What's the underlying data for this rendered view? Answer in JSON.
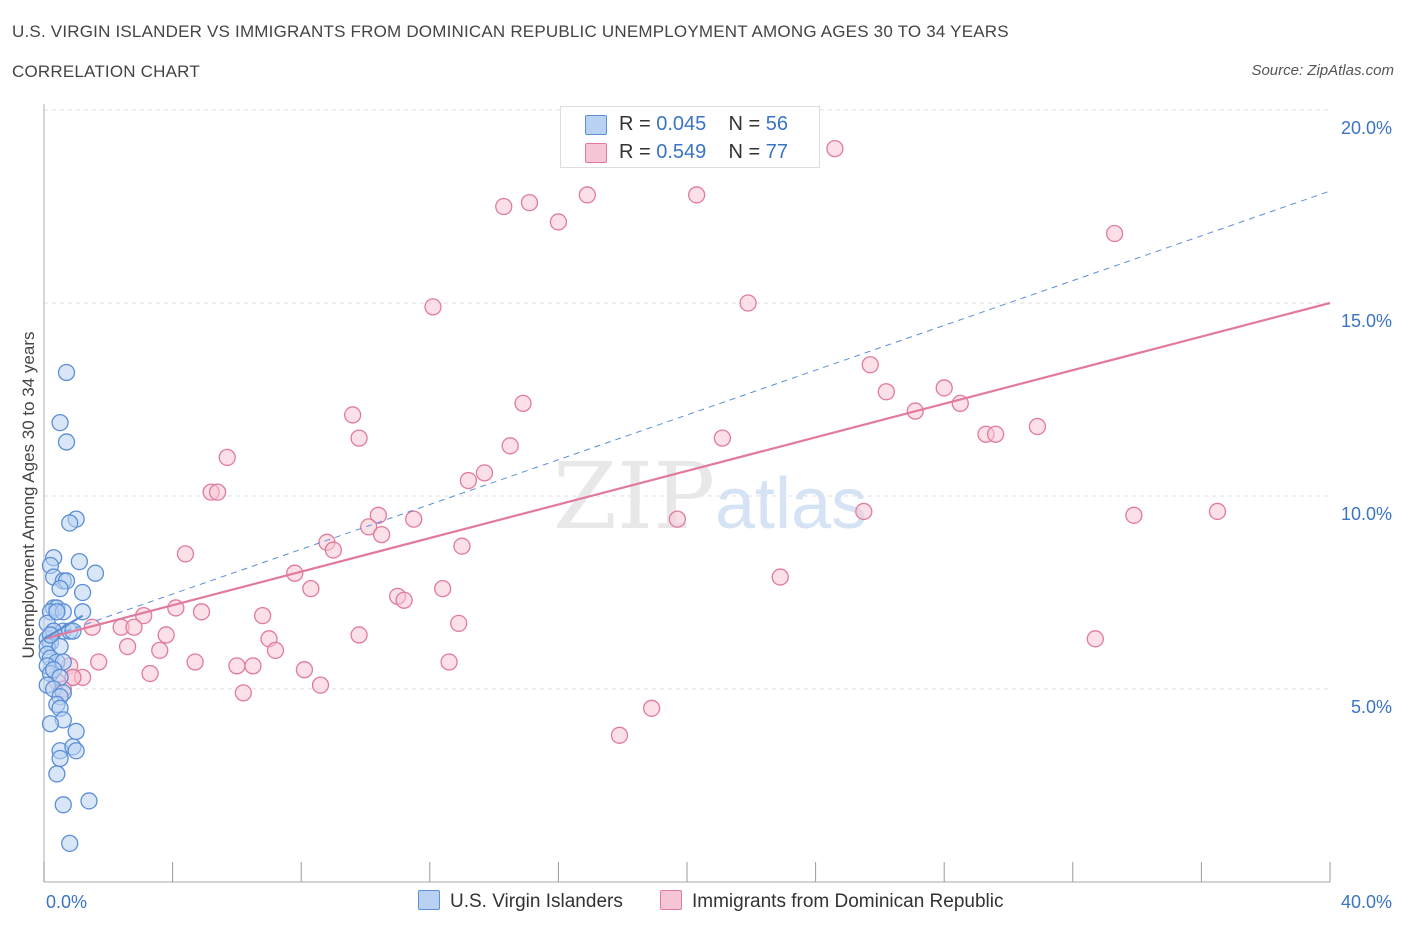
{
  "header": {
    "title": "U.S. VIRGIN ISLANDER VS IMMIGRANTS FROM DOMINICAN REPUBLIC UNEMPLOYMENT AMONG AGES 30 TO 34 YEARS",
    "subtitle": "CORRELATION CHART",
    "source": "Source: ZipAtlas.com"
  },
  "colors": {
    "blue": "#5b8fd6",
    "blue_fill": "#b9d2f3",
    "pink": "#e27a9c",
    "pink_fill": "#f7c6d6",
    "blue_text": "#3a74c4",
    "grid": "#dddddd"
  },
  "legend": {
    "rows": [
      {
        "r_label": "R =",
        "r_value": "0.045",
        "n_label": "N =",
        "n_value": "56"
      },
      {
        "r_label": "R =",
        "r_value": "0.549",
        "n_label": "N =",
        "n_value": "77"
      }
    ]
  },
  "watermark": {
    "zip": "ZIP",
    "atlas": "atlas"
  },
  "chart_data": {
    "type": "scatter",
    "title": "U.S. VIRGIN ISLANDER VS IMMIGRANTS FROM DOMINICAN REPUBLIC UNEMPLOYMENT AMONG AGES 30 TO 34 YEARS",
    "subtitle": "CORRELATION CHART",
    "ylabel": "Unemployment Among Ages 30 to 34 years",
    "xlabel": "",
    "xlim": [
      0,
      40
    ],
    "ylim": [
      0,
      20
    ],
    "x_tick_labels": [
      "0.0%",
      "40.0%"
    ],
    "y_tick_labels": [
      "5.0%",
      "10.0%",
      "15.0%",
      "20.0%"
    ],
    "y_ticks": [
      5,
      10,
      15,
      20
    ],
    "grid": true,
    "legend_position": "top-center",
    "series": [
      {
        "name": "U.S. Virgin Islanders",
        "color": "#5b8fd6",
        "r": 0.045,
        "n": 56,
        "trend": {
          "x": [
            0,
            1.2
          ],
          "y": [
            6.3,
            6.9
          ]
        },
        "points": [
          [
            0.7,
            13.2
          ],
          [
            0.5,
            11.9
          ],
          [
            0.7,
            11.4
          ],
          [
            1.0,
            9.4
          ],
          [
            0.8,
            9.3
          ],
          [
            0.3,
            8.4
          ],
          [
            1.1,
            8.3
          ],
          [
            0.2,
            8.2
          ],
          [
            1.6,
            8.0
          ],
          [
            0.3,
            7.9
          ],
          [
            0.6,
            7.8
          ],
          [
            0.7,
            7.8
          ],
          [
            0.5,
            7.6
          ],
          [
            1.2,
            7.5
          ],
          [
            0.3,
            7.1
          ],
          [
            0.4,
            7.1
          ],
          [
            0.2,
            7.0
          ],
          [
            0.6,
            7.0
          ],
          [
            1.2,
            7.0
          ],
          [
            0.1,
            6.7
          ],
          [
            0.3,
            6.5
          ],
          [
            0.6,
            6.5
          ],
          [
            0.8,
            6.5
          ],
          [
            0.9,
            6.5
          ],
          [
            0.1,
            6.3
          ],
          [
            0.2,
            6.2
          ],
          [
            0.1,
            6.1
          ],
          [
            0.5,
            6.1
          ],
          [
            0.1,
            5.9
          ],
          [
            0.2,
            5.8
          ],
          [
            0.4,
            5.7
          ],
          [
            0.6,
            5.7
          ],
          [
            0.1,
            5.6
          ],
          [
            0.2,
            5.4
          ],
          [
            0.3,
            5.5
          ],
          [
            0.5,
            5.3
          ],
          [
            0.1,
            5.1
          ],
          [
            0.3,
            5.0
          ],
          [
            0.6,
            4.9
          ],
          [
            0.5,
            4.8
          ],
          [
            0.4,
            4.6
          ],
          [
            0.5,
            4.5
          ],
          [
            0.6,
            4.2
          ],
          [
            0.2,
            4.1
          ],
          [
            1.0,
            3.9
          ],
          [
            0.5,
            3.4
          ],
          [
            0.9,
            3.5
          ],
          [
            1.0,
            3.4
          ],
          [
            0.5,
            3.2
          ],
          [
            0.4,
            2.8
          ],
          [
            0.6,
            2.0
          ],
          [
            1.4,
            2.1
          ],
          [
            0.8,
            1.0
          ],
          [
            0.3,
            6.5
          ],
          [
            0.4,
            7.0
          ],
          [
            0.2,
            6.4
          ]
        ]
      },
      {
        "name": "Immigrants from Dominican Republic",
        "color": "#e27a9c",
        "r": 0.549,
        "n": 77,
        "trend": {
          "x": [
            0,
            40
          ],
          "y": [
            6.3,
            15.0
          ]
        },
        "trend_extended": {
          "x": [
            0,
            40
          ],
          "y": [
            6.3,
            17.9
          ]
        },
        "points": [
          [
            24.6,
            19.0
          ],
          [
            16.9,
            17.8
          ],
          [
            20.3,
            17.8
          ],
          [
            14.3,
            17.5
          ],
          [
            15.1,
            17.6
          ],
          [
            16.0,
            17.1
          ],
          [
            33.3,
            16.8
          ],
          [
            12.1,
            14.9
          ],
          [
            21.9,
            15.0
          ],
          [
            25.7,
            13.4
          ],
          [
            26.2,
            12.7
          ],
          [
            28.0,
            12.8
          ],
          [
            28.5,
            12.4
          ],
          [
            14.9,
            12.4
          ],
          [
            27.1,
            12.2
          ],
          [
            9.6,
            12.1
          ],
          [
            9.8,
            11.5
          ],
          [
            29.3,
            11.6
          ],
          [
            29.6,
            11.6
          ],
          [
            30.9,
            11.8
          ],
          [
            21.1,
            11.5
          ],
          [
            14.5,
            11.3
          ],
          [
            5.7,
            11.0
          ],
          [
            13.7,
            10.6
          ],
          [
            13.2,
            10.4
          ],
          [
            5.2,
            10.1
          ],
          [
            5.4,
            10.1
          ],
          [
            25.5,
            9.6
          ],
          [
            19.7,
            9.4
          ],
          [
            33.9,
            9.5
          ],
          [
            36.5,
            9.6
          ],
          [
            10.4,
            9.5
          ],
          [
            11.5,
            9.4
          ],
          [
            10.1,
            9.2
          ],
          [
            10.5,
            9.0
          ],
          [
            8.8,
            8.8
          ],
          [
            9.0,
            8.6
          ],
          [
            13.0,
            8.7
          ],
          [
            4.4,
            8.5
          ],
          [
            7.8,
            8.0
          ],
          [
            22.9,
            7.9
          ],
          [
            8.3,
            7.6
          ],
          [
            12.4,
            7.6
          ],
          [
            11.0,
            7.4
          ],
          [
            11.2,
            7.3
          ],
          [
            4.1,
            7.1
          ],
          [
            4.9,
            7.0
          ],
          [
            3.1,
            6.9
          ],
          [
            6.8,
            6.9
          ],
          [
            12.9,
            6.7
          ],
          [
            2.4,
            6.6
          ],
          [
            2.8,
            6.6
          ],
          [
            1.5,
            6.6
          ],
          [
            3.8,
            6.4
          ],
          [
            7.0,
            6.3
          ],
          [
            9.8,
            6.4
          ],
          [
            32.7,
            6.3
          ],
          [
            2.6,
            6.1
          ],
          [
            3.6,
            6.0
          ],
          [
            7.2,
            6.0
          ],
          [
            4.7,
            5.7
          ],
          [
            1.7,
            5.7
          ],
          [
            6.0,
            5.6
          ],
          [
            6.5,
            5.6
          ],
          [
            12.6,
            5.7
          ],
          [
            8.1,
            5.5
          ],
          [
            0.8,
            5.6
          ],
          [
            3.3,
            5.4
          ],
          [
            0.9,
            5.3
          ],
          [
            1.2,
            5.3
          ],
          [
            0.4,
            5.2
          ],
          [
            8.6,
            5.1
          ],
          [
            6.2,
            4.9
          ],
          [
            18.9,
            4.5
          ],
          [
            17.9,
            3.8
          ],
          [
            0.6,
            5.0
          ],
          [
            0.9,
            5.3
          ]
        ]
      }
    ]
  },
  "bottom_legend": {
    "series1": "U.S. Virgin Islanders",
    "series2": "Immigrants from Dominican Republic"
  }
}
